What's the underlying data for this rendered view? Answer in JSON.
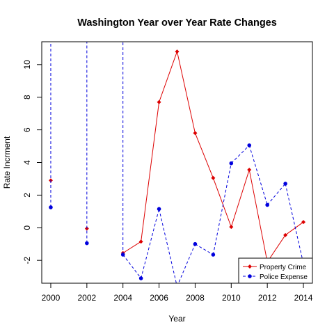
{
  "chart_data": {
    "type": "line",
    "title": "Washington Year over Year Rate Changes",
    "xlabel": "Year",
    "ylabel": "Rate Incrment",
    "xlim": [
      1999.5,
      2014.5
    ],
    "ylim": [
      -3.4,
      11.4
    ],
    "x_ticks": [
      2000,
      2002,
      2004,
      2006,
      2008,
      2010,
      2012,
      2014
    ],
    "y_ticks": [
      -2,
      0,
      2,
      4,
      6,
      8,
      10
    ],
    "grid": false,
    "legend_position": "bottom-right",
    "series": [
      {
        "name": "Property Crime",
        "color": "#dd0000",
        "line_style": "solid",
        "marker": "diamond",
        "points": [
          {
            "x": 2000,
            "y": 2.9
          },
          {
            "x": 2002,
            "y": -0.05
          },
          {
            "x": 2004,
            "y": -1.55
          },
          {
            "x": 2005,
            "y": -0.85
          },
          {
            "x": 2006,
            "y": 7.7
          },
          {
            "x": 2007,
            "y": 10.8
          },
          {
            "x": 2008,
            "y": 5.8
          },
          {
            "x": 2009,
            "y": 3.05
          },
          {
            "x": 2010,
            "y": 0.05
          },
          {
            "x": 2011,
            "y": 3.55
          },
          {
            "x": 2012,
            "y": -2.1
          },
          {
            "x": 2013,
            "y": -0.45
          },
          {
            "x": 2014,
            "y": 0.35
          }
        ]
      },
      {
        "name": "Police Expense",
        "color": "#0000dd",
        "line_style": "dashed",
        "marker": "circle",
        "points": [
          {
            "x": 2000,
            "y": 1.25
          },
          {
            "x": 2002,
            "y": -0.95
          },
          {
            "x": 2004,
            "y": -1.65
          },
          {
            "x": 2005,
            "y": -3.1
          },
          {
            "x": 2006,
            "y": 1.15
          },
          {
            "x": 2007,
            "y": -3.6
          },
          {
            "x": 2008,
            "y": -1.0
          },
          {
            "x": 2009,
            "y": -1.65
          },
          {
            "x": 2010,
            "y": 3.95
          },
          {
            "x": 2011,
            "y": 5.05
          },
          {
            "x": 2012,
            "y": 1.4
          },
          {
            "x": 2013,
            "y": 2.7
          },
          {
            "x": 2014,
            "y": -2.2
          }
        ],
        "off_chart_spikes": [
          {
            "x": 2000,
            "y_from": 1.25
          },
          {
            "x": 2002,
            "y_from": -0.95
          },
          {
            "x": 2004,
            "y_from": -1.65
          }
        ]
      }
    ]
  }
}
